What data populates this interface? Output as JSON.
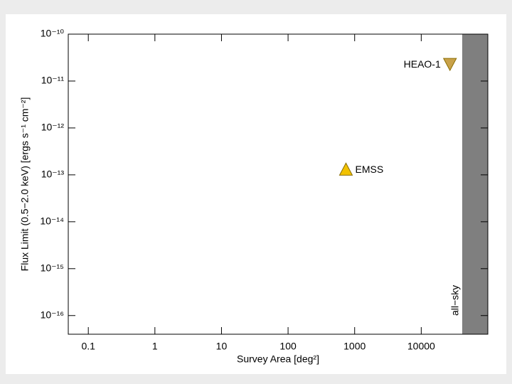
{
  "chart_data": {
    "type": "scatter",
    "xlabel": "Survey Area [deg²]",
    "ylabel": "Flux Limit (0.5−2.0 keV) [ergs s⁻¹ cm⁻²]",
    "xscale": "log",
    "yscale": "log",
    "xlim": [
      0.05,
      100000
    ],
    "ylim": [
      4e-17,
      1e-10
    ],
    "xticks": [
      0.1,
      1,
      10,
      100,
      1000,
      10000
    ],
    "yticks": [
      {
        "value": 1e-10,
        "label": "10⁻¹⁰"
      },
      {
        "value": 1e-11,
        "label": "10⁻¹¹"
      },
      {
        "value": 1e-12,
        "label": "10⁻¹²"
      },
      {
        "value": 1e-13,
        "label": "10⁻¹³"
      },
      {
        "value": 1e-14,
        "label": "10⁻¹⁴"
      },
      {
        "value": 1e-15,
        "label": "10⁻¹⁵"
      },
      {
        "value": 1e-16,
        "label": "10⁻¹⁶"
      }
    ],
    "series": [
      {
        "name": "EMSS",
        "color": "#f2c200",
        "marker": "triangle-up",
        "x": [
          740
        ],
        "values": [
          1.3e-13
        ]
      },
      {
        "name": "HEAO-1",
        "color": "#c9a24a",
        "marker": "triangle-down",
        "x": [
          27000
        ],
        "values": [
          2.3e-11
        ]
      }
    ],
    "shade": {
      "xmin": 41253,
      "label": "all−sky",
      "color": "#7f7f7f"
    }
  }
}
